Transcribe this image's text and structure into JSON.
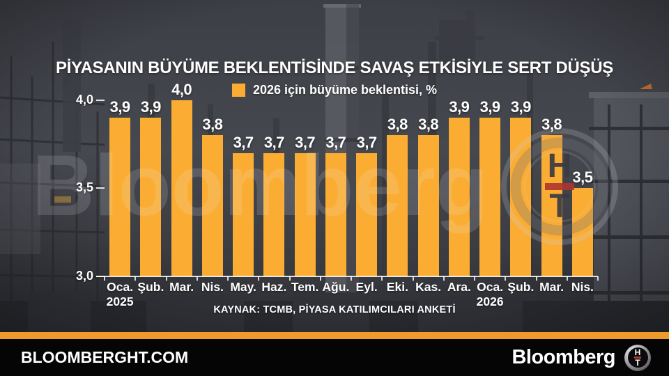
{
  "title": "PİYASANIN BÜYÜME BEKLENTİSİNDE SAVAŞ ETKİSİYLE SERT DÜŞÜŞ",
  "legend": {
    "label": "2026 için büyüme beklentisi, %",
    "color": "#FBAD33"
  },
  "source": "KAYNAK: TCMB, PİYASA KATILIMCILARI ANKETİ",
  "watermark": {
    "text": "Bloomberg",
    "emblem_h": "H",
    "emblem_t": "T"
  },
  "footer": {
    "site": "BLOOMBERGHT.COM",
    "brand": "Bloomberg",
    "logo_h": "H",
    "logo_t": "T",
    "stripe_color": "#EF9A2D"
  },
  "chart_data": {
    "type": "bar",
    "title": "PİYASANIN BÜYÜME BEKLENTİSİNDE SAVAŞ ETKİSİYLE SERT DÜŞÜŞ",
    "legend": "2026 için büyüme beklentisi, %",
    "legend_position": "top",
    "bar_color": "#FBAD33",
    "grid": false,
    "categories": [
      "Oca.",
      "Şub.",
      "Mar.",
      "Nis.",
      "May.",
      "Haz.",
      "Tem.",
      "Ağu.",
      "Eyl.",
      "Eki.",
      "Kas.",
      "Ara.",
      "Oca.",
      "Şub.",
      "Mar.",
      "Nis."
    ],
    "values": [
      3.9,
      3.9,
      4.0,
      3.8,
      3.7,
      3.7,
      3.7,
      3.7,
      3.7,
      3.8,
      3.8,
      3.9,
      3.9,
      3.9,
      3.8,
      3.5
    ],
    "value_labels": [
      "3,9",
      "3,9",
      "4,0",
      "3,8",
      "3,7",
      "3,7",
      "3,7",
      "3,7",
      "3,7",
      "3,8",
      "3,8",
      "3,9",
      "3,9",
      "3,9",
      "3,8",
      "3,5"
    ],
    "year_rows": [
      {
        "index": 0,
        "label": "2025"
      },
      {
        "index": 12,
        "label": "2026"
      }
    ],
    "ylim": [
      3.0,
      4.0
    ],
    "yticks": [
      {
        "label": "4,0",
        "value": 4.0
      },
      {
        "label": "3,5",
        "value": 3.5
      },
      {
        "label": "3,0",
        "value": 3.0
      }
    ],
    "xlabel": "",
    "ylabel": ""
  }
}
